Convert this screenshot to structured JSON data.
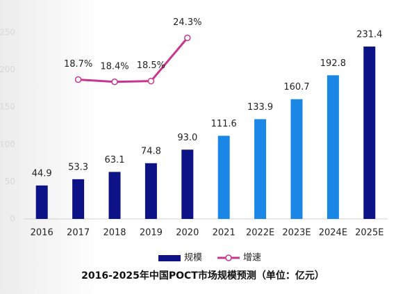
{
  "chart_data": {
    "type": "bar",
    "title": "2016-2025年中国POCT市场规模预测（单位：亿元）",
    "categories": [
      "2016",
      "2017",
      "2018",
      "2019",
      "2020",
      "2021",
      "2022E",
      "2023E",
      "2024E",
      "2025E"
    ],
    "ylim": [
      0,
      250
    ],
    "yticks": [
      0,
      50,
      100,
      150,
      200,
      250
    ],
    "y2lim": [
      0,
      25
    ],
    "series": [
      {
        "name": "规模",
        "type": "bar",
        "color": "#0d1287",
        "colors": [
          "#0d1287",
          "#0d1287",
          "#0d1287",
          "#0d1287",
          "#0d1287",
          "#1a87e6",
          "#1a87e6",
          "#1a87e6",
          "#1a87e6",
          "#0d1287"
        ],
        "values": [
          44.9,
          53.3,
          63.1,
          74.8,
          93.0,
          111.6,
          133.9,
          160.7,
          192.8,
          231.4
        ],
        "value_labels": [
          "44.9",
          "53.3",
          "63.1",
          "74.8",
          "93.0",
          "111.6",
          "133.9",
          "160.7",
          "192.8",
          "231.4"
        ]
      },
      {
        "name": "增速",
        "type": "line",
        "axis": "y2",
        "color": "#c8348f",
        "values": [
          null,
          18.7,
          18.4,
          18.5,
          24.3,
          null,
          null,
          null,
          null,
          null
        ],
        "value_labels": [
          null,
          "18.7%",
          "18.4%",
          "18.5%",
          "24.3%",
          null,
          null,
          null,
          null,
          null
        ]
      }
    ],
    "legend": "bottom"
  }
}
